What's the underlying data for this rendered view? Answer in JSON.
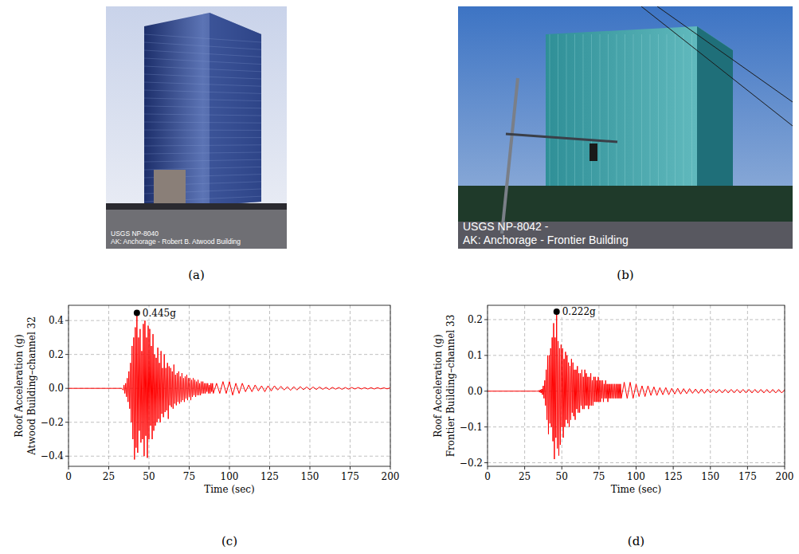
{
  "photos": [
    {
      "panel_label": "(a)",
      "texts": [
        "USGS NP-8040",
        "AK: Anchorage - Robert B. Atwood Building"
      ]
    },
    {
      "panel_label": "(b)",
      "texts": [
        "USGS NP-8042 -",
        "AK: Anchorage - Frontier Building"
      ]
    }
  ],
  "chart_data": [
    {
      "type": "line",
      "panel_label": "(c)",
      "xlabel": "Time (sec)",
      "ylabel": [
        "Roof Acceleration (g)",
        "Atwood Building–channel 32"
      ],
      "color": "red",
      "grid": true,
      "xlim": [
        0,
        200
      ],
      "xticks": [
        0,
        25,
        50,
        75,
        100,
        125,
        150,
        175,
        200
      ],
      "ylim": [
        -0.46,
        0.49
      ],
      "yticks": [
        {
          "value": -0.4,
          "label": "−0.4"
        },
        {
          "value": -0.2,
          "label": "−0.2"
        },
        {
          "value": 0,
          "label": "0.0"
        },
        0.2,
        0.4
      ],
      "annotations": [
        {
          "text": "0.445g",
          "x": 42.5,
          "y": 0.445
        }
      ],
      "x": [
        0,
        33,
        34,
        34.5,
        35,
        35.5,
        36,
        36.5,
        37,
        37.5,
        38,
        38.5,
        39,
        39.5,
        40,
        40.5,
        41,
        41.5,
        42,
        42.5,
        43,
        43.5,
        44,
        44.5,
        45,
        45.5,
        46,
        46.5,
        47,
        47.5,
        48,
        48.5,
        49,
        49.5,
        50,
        50.5,
        51,
        51.5,
        52,
        52.5,
        53,
        53.5,
        54,
        54.5,
        55,
        55.5,
        56,
        56.5,
        57,
        57.5,
        58,
        58.5,
        59,
        59.5,
        60,
        60.5,
        61,
        61.5,
        62,
        62.5,
        63,
        63.5,
        64,
        64.5,
        65,
        65.5,
        66,
        66.5,
        67,
        67.5,
        68,
        68.5,
        69,
        69.5,
        70,
        70.5,
        71,
        71.5,
        72,
        72.5,
        73,
        73.5,
        74,
        74.5,
        75,
        75.5,
        76,
        76.5,
        77,
        77.5,
        78,
        78.5,
        79,
        79.5,
        80,
        80.5,
        81,
        81.5,
        82,
        82.5,
        83,
        83.5,
        84,
        84.5,
        85,
        85.5,
        86,
        86.5,
        87,
        87.5,
        88,
        88.5,
        89,
        89.5,
        90,
        92,
        94,
        96,
        98,
        100,
        102,
        104,
        106,
        108,
        110,
        112,
        114,
        116,
        118,
        120,
        122,
        124,
        126,
        128,
        130,
        132,
        134,
        136,
        138,
        140,
        142,
        144,
        146,
        148,
        150,
        152,
        154,
        156,
        158,
        160,
        162,
        164,
        166,
        168,
        170,
        172,
        174,
        176,
        178,
        180,
        182,
        184,
        186,
        188,
        190,
        192,
        194,
        196,
        198,
        200
      ],
      "values": [
        0,
        0,
        -0.01,
        0.02,
        -0.03,
        0.03,
        -0.05,
        0.06,
        -0.08,
        0.1,
        -0.12,
        0.15,
        -0.2,
        0.25,
        -0.3,
        0.3,
        -0.42,
        0.36,
        -0.35,
        0.445,
        -0.38,
        0.3,
        -0.25,
        0.35,
        -0.32,
        0.22,
        -0.3,
        0.38,
        -0.4,
        0.4,
        -0.28,
        0.3,
        -0.41,
        0.37,
        -0.3,
        0.35,
        -0.22,
        0.25,
        -0.3,
        0.32,
        -0.25,
        0.2,
        -0.22,
        0.18,
        -0.2,
        0.24,
        -0.18,
        0.15,
        -0.2,
        0.22,
        -0.15,
        0.12,
        -0.17,
        0.2,
        -0.14,
        0.12,
        -0.13,
        0.15,
        -0.18,
        0.13,
        -0.1,
        0.12,
        -0.11,
        0.1,
        -0.12,
        0.14,
        -0.09,
        0.08,
        -0.1,
        0.09,
        -0.08,
        0.1,
        -0.09,
        0.07,
        -0.08,
        0.09,
        -0.07,
        0.06,
        -0.08,
        0.07,
        -0.06,
        0.08,
        -0.07,
        0.06,
        -0.05,
        0.06,
        -0.07,
        0.05,
        -0.05,
        0.06,
        -0.04,
        0.05,
        -0.05,
        0.04,
        -0.04,
        0.05,
        -0.04,
        0.03,
        -0.04,
        0.04,
        -0.03,
        0.04,
        -0.03,
        0.03,
        -0.03,
        0.03,
        -0.02,
        0.03,
        -0.03,
        0.02,
        -0.03,
        0.03,
        -0.02,
        0.03,
        -0.03,
        0.03,
        -0.03,
        0.04,
        -0.03,
        0.04,
        -0.04,
        0.03,
        -0.03,
        0.03,
        -0.02,
        0.02,
        -0.02,
        0.02,
        -0.015,
        0.015,
        -0.02,
        0.015,
        -0.015,
        0.015,
        -0.01,
        0.012,
        -0.01,
        0.01,
        -0.012,
        0.01,
        -0.01,
        0.01,
        -0.008,
        0.008,
        -0.008,
        0.008,
        -0.007,
        0.008,
        -0.006,
        0.006,
        -0.007,
        0.006,
        -0.005,
        0.005,
        -0.006,
        0.005,
        -0.005,
        0.005,
        -0.004,
        0.005,
        -0.004,
        0.004,
        -0.004,
        0.004,
        -0.004,
        0.004,
        -0.003,
        0.003,
        -0.003,
        0.003
      ]
    },
    {
      "type": "line",
      "panel_label": "(d)",
      "xlabel": "Time (sec)",
      "ylabel": [
        "Roof Acceleration (g)",
        "Frontier Building–channel 33"
      ],
      "color": "red",
      "grid": true,
      "xlim": [
        0,
        200
      ],
      "xticks": [
        0,
        25,
        50,
        75,
        100,
        125,
        150,
        175,
        200
      ],
      "ylim": [
        -0.21,
        0.24
      ],
      "yticks": [
        {
          "value": -0.2,
          "label": "−0.2"
        },
        {
          "value": -0.1,
          "label": "−0.1"
        },
        {
          "value": 0,
          "label": "0.0"
        },
        0.1,
        0.2
      ],
      "annotations": [
        {
          "text": "0.222g",
          "x": 46.5,
          "y": 0.222
        }
      ],
      "x": [
        0,
        33,
        34,
        34.5,
        35,
        35.5,
        36,
        36.5,
        37,
        37.5,
        38,
        38.5,
        39,
        39.5,
        40,
        40.5,
        41,
        41.5,
        42,
        42.5,
        43,
        43.5,
        44,
        44.5,
        45,
        45.5,
        46,
        46.5,
        47,
        47.5,
        48,
        48.5,
        49,
        49.5,
        50,
        50.5,
        51,
        51.5,
        52,
        52.5,
        53,
        53.5,
        54,
        54.5,
        55,
        55.5,
        56,
        56.5,
        57,
        57.5,
        58,
        58.5,
        59,
        59.5,
        60,
        60.5,
        61,
        61.5,
        62,
        62.5,
        63,
        63.5,
        64,
        64.5,
        65,
        65.5,
        66,
        66.5,
        67,
        67.5,
        68,
        68.5,
        69,
        69.5,
        70,
        70.5,
        71,
        71.5,
        72,
        72.5,
        73,
        73.5,
        74,
        74.5,
        75,
        75.5,
        76,
        76.5,
        77,
        77.5,
        78,
        78.5,
        79,
        79.5,
        80,
        80.5,
        81,
        81.5,
        82,
        82.5,
        83,
        83.5,
        84,
        84.5,
        85,
        85.5,
        86,
        86.5,
        87,
        87.5,
        88,
        88.5,
        89,
        89.5,
        90,
        92,
        94,
        96,
        98,
        100,
        102,
        104,
        106,
        108,
        110,
        112,
        114,
        116,
        118,
        120,
        122,
        124,
        126,
        128,
        130,
        132,
        134,
        136,
        138,
        140,
        142,
        144,
        146,
        148,
        150,
        152,
        154,
        156,
        158,
        160,
        162,
        164,
        166,
        168,
        170,
        172,
        174,
        176,
        178,
        180,
        182,
        184,
        186,
        188,
        190,
        192,
        194,
        196,
        198,
        200
      ],
      "values": [
        0,
        0,
        0,
        0.002,
        -0.003,
        0.004,
        -0.005,
        0.006,
        -0.01,
        0.015,
        -0.02,
        0.03,
        -0.04,
        0.06,
        -0.08,
        0.1,
        -0.12,
        0.1,
        -0.09,
        0.12,
        -0.1,
        0.15,
        -0.14,
        0.19,
        -0.19,
        0.15,
        -0.13,
        0.222,
        -0.16,
        0.14,
        -0.18,
        0.12,
        -0.15,
        0.13,
        -0.1,
        0.12,
        -0.13,
        0.09,
        -0.1,
        0.11,
        -0.08,
        0.1,
        -0.09,
        0.08,
        -0.1,
        0.07,
        -0.08,
        0.09,
        -0.06,
        0.08,
        -0.07,
        0.06,
        -0.08,
        0.06,
        -0.05,
        0.07,
        -0.06,
        0.05,
        -0.06,
        0.05,
        -0.04,
        0.06,
        -0.05,
        0.04,
        -0.05,
        0.06,
        -0.04,
        0.05,
        -0.04,
        0.04,
        -0.05,
        0.04,
        -0.04,
        0.05,
        -0.04,
        0.03,
        -0.04,
        0.04,
        -0.03,
        0.04,
        -0.03,
        0.03,
        -0.03,
        0.04,
        -0.03,
        0.03,
        -0.03,
        0.03,
        -0.02,
        0.03,
        -0.03,
        0.02,
        -0.02,
        0.03,
        -0.02,
        0.02,
        -0.03,
        0.02,
        -0.02,
        0.02,
        -0.02,
        0.02,
        -0.02,
        0.02,
        -0.02,
        0.02,
        -0.02,
        0.02,
        -0.02,
        0.02,
        -0.02,
        0.02,
        -0.02,
        0.02,
        -0.02,
        0.025,
        -0.02,
        0.025,
        -0.02,
        0.02,
        -0.015,
        0.015,
        -0.015,
        0.015,
        -0.012,
        0.012,
        -0.012,
        0.01,
        -0.01,
        0.01,
        -0.01,
        0.008,
        -0.008,
        0.008,
        -0.008,
        0.007,
        -0.007,
        0.007,
        -0.006,
        0.006,
        -0.006,
        0.006,
        -0.006,
        0.006,
        -0.005,
        0.005,
        -0.005,
        0.005,
        -0.005,
        0.005,
        -0.005,
        0.005,
        -0.005,
        0.005,
        -0.005,
        0.005,
        -0.005,
        0.005,
        -0.005,
        0.005,
        -0.005,
        0.005,
        -0.005,
        0.005,
        -0.005,
        0.005,
        -0.005,
        0.005,
        -0.005,
        0.004
      ]
    }
  ]
}
